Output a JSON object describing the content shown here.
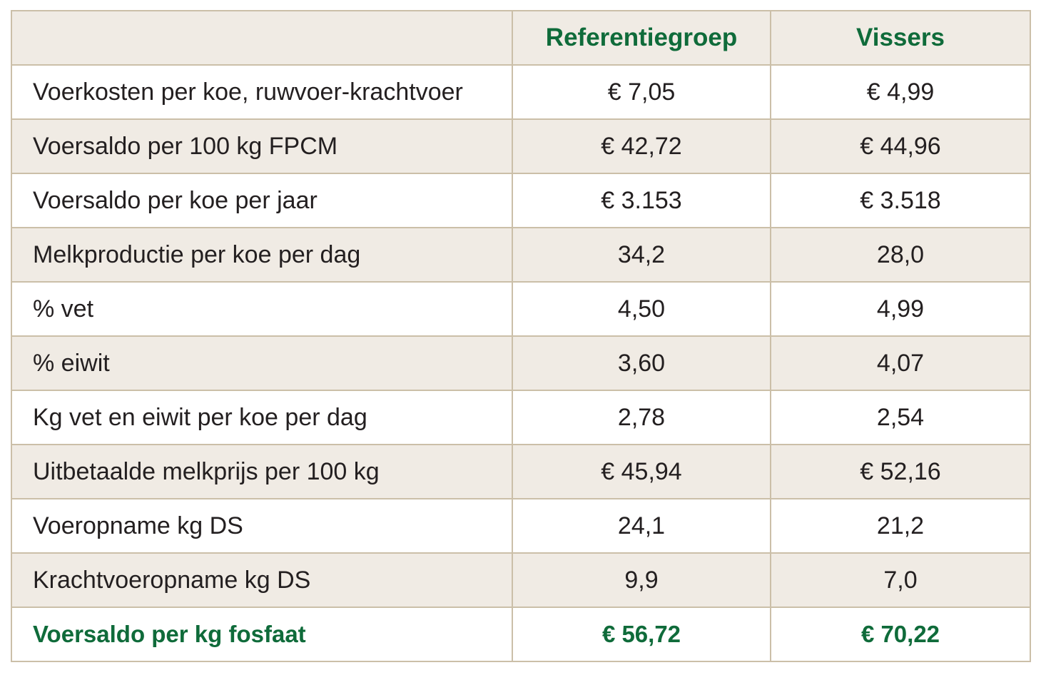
{
  "table": {
    "headers": [
      "",
      "Referentiegroep",
      "Vissers"
    ],
    "rows": [
      {
        "label": "Voerkosten per koe, ruwvoer-krachtvoer",
        "referentiegroep": "€ 7,05",
        "vissers": "€ 4,99"
      },
      {
        "label": "Voersaldo per 100 kg FPCM",
        "referentiegroep": "€ 42,72",
        "vissers": "€ 44,96"
      },
      {
        "label": "Voersaldo per koe per jaar",
        "referentiegroep": "€ 3.153",
        "vissers": "€ 3.518"
      },
      {
        "label": "Melkproductie per koe per dag",
        "referentiegroep": "34,2",
        "vissers": "28,0"
      },
      {
        "label": "% vet",
        "referentiegroep": "4,50",
        "vissers": "4,99"
      },
      {
        "label": "% eiwit",
        "referentiegroep": "3,60",
        "vissers": "4,07"
      },
      {
        "label": "Kg vet en eiwit per koe per dag",
        "referentiegroep": "2,78",
        "vissers": "2,54"
      },
      {
        "label": "Uitbetaalde melkprijs per 100 kg",
        "referentiegroep": "€ 45,94",
        "vissers": "€ 52,16"
      },
      {
        "label": "Voeropname kg DS",
        "referentiegroep": "24,1",
        "vissers": "21,2"
      },
      {
        "label": "Krachtvoeropname kg DS",
        "referentiegroep": "9,9",
        "vissers": "7,0"
      },
      {
        "label": "Voersaldo per kg fosfaat",
        "referentiegroep": "€ 56,72",
        "vissers": "€ 70,22"
      }
    ]
  },
  "colors": {
    "header_text": "#0f6b3a",
    "shaded_row": "#f0ebe4",
    "border": "#cbbfa8",
    "body_text": "#231f20"
  }
}
